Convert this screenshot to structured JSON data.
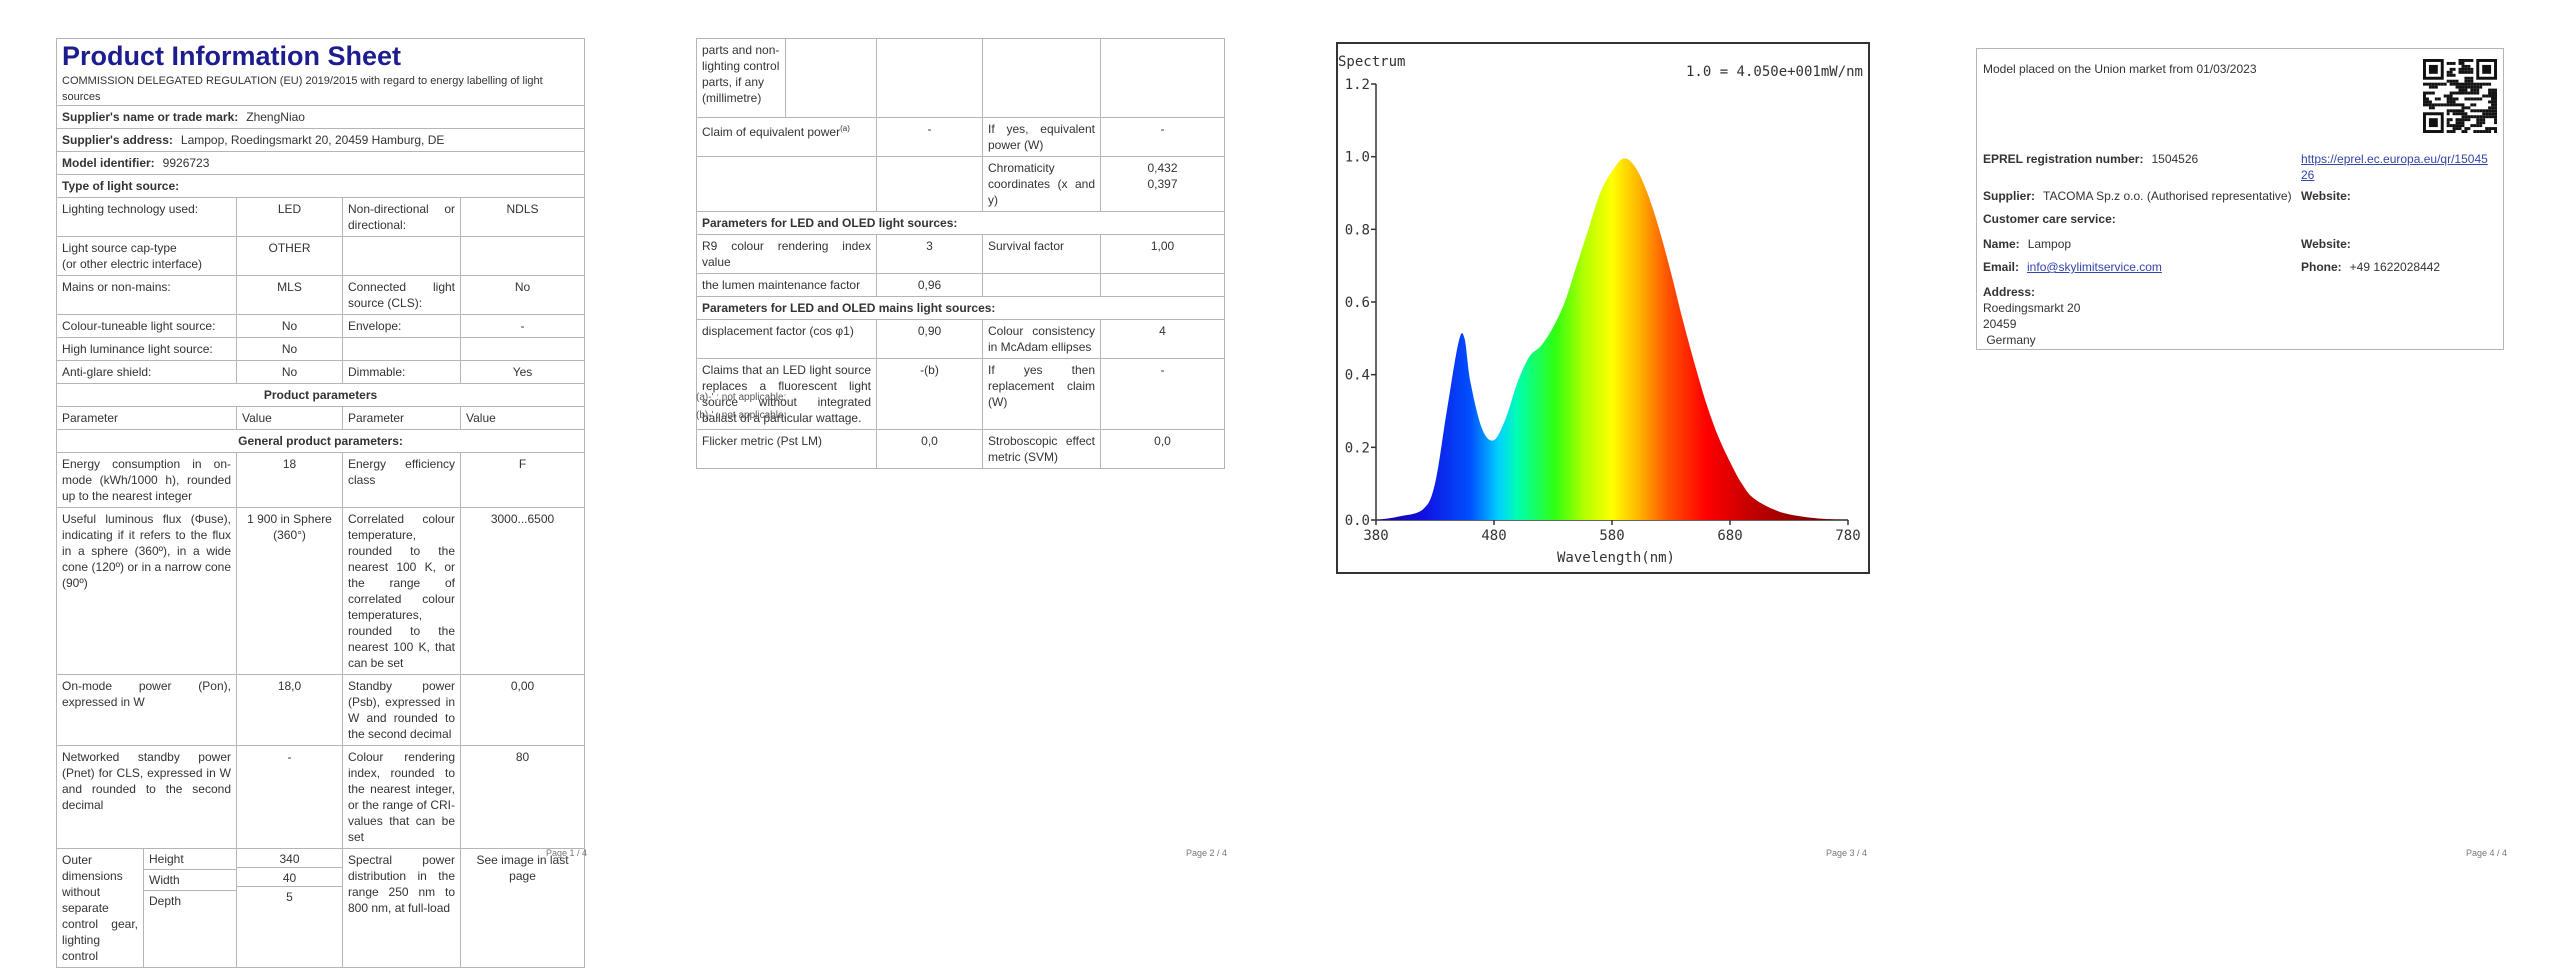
{
  "sheet": {
    "title": "Product Information Sheet",
    "regulation": "COMMISSION DELEGATED REGULATION (EU) 2019/2015 with regard to energy labelling of light sources",
    "supplier_name_label": "Supplier's name or trade mark:",
    "supplier_name": "ZhengNiao",
    "supplier_address_label": "Supplier's address:",
    "supplier_address": "Lampop, Roedingsmarkt 20, 20459 Hamburg, DE",
    "model_label": "Model identifier:",
    "model": "9926723",
    "type_label": "Type of light source:",
    "type_rows": [
      {
        "a": "Lighting technology used:",
        "b": "LED",
        "c": "Non-directional or directional:",
        "d": "NDLS"
      },
      {
        "a": "Light source cap-type\n(or other electric interface)",
        "b": "OTHER",
        "c": "",
        "d": ""
      },
      {
        "a": "Mains or non-mains:",
        "b": "MLS",
        "c": "Connected light source (CLS):",
        "d": "No"
      },
      {
        "a": "Colour-tuneable light source:",
        "b": "No",
        "c": "Envelope:",
        "d": "-"
      },
      {
        "a": "High luminance light source:",
        "b": "No",
        "c": "",
        "d": ""
      },
      {
        "a": "Anti-glare shield:",
        "b": "No",
        "c": "Dimmable:",
        "d": "Yes"
      }
    ],
    "product_params": "Product parameters",
    "head": {
      "p": "Parameter",
      "v": "Value",
      "p2": "Parameter",
      "v2": "Value"
    },
    "general_params": "General product parameters:",
    "general_rows": [
      {
        "a": "Energy consumption in on-mode (kWh/1000 h), rounded up to the nearest integer",
        "b": "18",
        "c": "Energy efficiency class",
        "d": "F"
      },
      {
        "a": "Useful luminous flux (Φuse), indicating if it refers to the flux in a sphere (360º), in a wide cone (120º) or in a narrow cone (90º)",
        "b": "1 900 in Sphere (360°)",
        "c": "Correlated colour temperature, rounded to the nearest 100 K, or the range of correlated colour temperatures, rounded to the nearest 100 K, that can be set",
        "d": "3000...6500"
      },
      {
        "a": "On-mode power (Pon), expressed in W",
        "b": "18,0",
        "c": "Standby power (Psb), expressed in W and rounded to the second decimal",
        "d": "0,00"
      },
      {
        "a": "Networked standby power (Pnet) for CLS, expressed in W and rounded to the second decimal",
        "b": "-",
        "c": "Colour rendering index, rounded to the nearest integer, or the range of CRI-values that can be set",
        "d": "80"
      }
    ],
    "outer_label": "Outer dimensions without separate control gear, lighting control",
    "dims": [
      {
        "name": "Height",
        "value": "340"
      },
      {
        "name": "Width",
        "value": "40"
      },
      {
        "name": "Depth",
        "value": "5"
      }
    ],
    "spd_label": "Spectral power distribution in the range 250 nm to 800 nm, at full-load",
    "spd_value": "See image in last page",
    "page1": "Page 1 / 4"
  },
  "sheet2": {
    "cont_label": "parts and non-lighting control parts, if any (millimetre)",
    "equiv_label": "Claim of equivalent power",
    "equiv_sup": "(a)",
    "equiv_value": "-",
    "equiv_yes": "If yes, equivalent power (W)",
    "equiv_yes_value": "-",
    "chroma_label": "Chromaticity coordinates (x and y)",
    "chroma_x": "0,432",
    "chroma_y": "0,397",
    "led_params": "Parameters for LED and OLED light sources:",
    "led_rows": [
      {
        "a": "R9 colour rendering index value",
        "b": "3",
        "c": "Survival factor",
        "d": "1,00"
      },
      {
        "a": "the lumen maintenance factor",
        "b": "0,96",
        "c": "",
        "d": ""
      }
    ],
    "mains_params": "Parameters for LED and OLED mains light sources:",
    "mains_rows": [
      {
        "a": "displacement factor (cos φ1)",
        "b": "0,90",
        "c": "Colour consistency in McAdam ellipses",
        "d": "4"
      },
      {
        "a": "Claims that an LED light source replaces a fluorescent light source without integrated ballast of a particular wattage.",
        "b": "-(b)",
        "c": "If yes then replacement claim (W)",
        "d": "-"
      },
      {
        "a": "Flicker metric (Pst LM)",
        "b": "0,0",
        "c": "Stroboscopic effect metric (SVM)",
        "d": "0,0"
      }
    ],
    "footnote_a": "(a)-' : not applicable;",
    "footnote_b": "(b)-' : not applicable;",
    "page2": "Page 2 / 4"
  },
  "chart_data": {
    "type": "area",
    "title": "Spectrum",
    "annotation": "1.0 = 4.050e+001mW/nm",
    "xlabel": "Wavelength(nm)",
    "ylabel": "",
    "xlim": [
      380,
      780
    ],
    "ylim": [
      0,
      1.2
    ],
    "xticks": [
      380,
      480,
      580,
      680,
      780
    ],
    "yticks": [
      0.0,
      0.2,
      0.4,
      0.6,
      0.8,
      1.0,
      1.2
    ],
    "x": [
      380,
      400,
      420,
      430,
      440,
      450,
      455,
      460,
      470,
      480,
      490,
      500,
      510,
      520,
      530,
      540,
      550,
      560,
      570,
      580,
      590,
      600,
      610,
      620,
      630,
      640,
      650,
      660,
      670,
      680,
      690,
      700,
      720,
      740,
      760,
      780
    ],
    "values": [
      0.0,
      0.01,
      0.03,
      0.1,
      0.3,
      0.49,
      0.5,
      0.38,
      0.25,
      0.22,
      0.28,
      0.38,
      0.45,
      0.48,
      0.53,
      0.6,
      0.7,
      0.8,
      0.9,
      0.96,
      0.995,
      0.97,
      0.9,
      0.8,
      0.68,
      0.55,
      0.43,
      0.32,
      0.23,
      0.16,
      0.1,
      0.06,
      0.025,
      0.01,
      0.003,
      0.0
    ],
    "page3": "Page 3 / 4"
  },
  "label_card": {
    "placed": "Model placed on the Union market from 01/03/2023",
    "eprel_label": "EPREL registration number:",
    "eprel": "1504526",
    "eprel_link": "https://eprel.ec.europa.eu/qr/1504526",
    "supplier_label": "Supplier:",
    "supplier": "TACOMA Sp.z o.o. (Authorised representative)",
    "website_label": "Website:",
    "care_label": "Customer care service:",
    "name_label": "Name:",
    "name": "Lampop",
    "website2_label": "Website:",
    "email_label": "Email:",
    "email": "info@skylimitservice.com",
    "phone_label": "Phone:",
    "phone": "+49 1622028442",
    "address_label": "Address:",
    "address_lines": [
      "Roedingsmarkt 20",
      "20459",
      " Germany"
    ],
    "qr_icon": "qr-code-icon",
    "page4": "Page 4 / 4"
  }
}
